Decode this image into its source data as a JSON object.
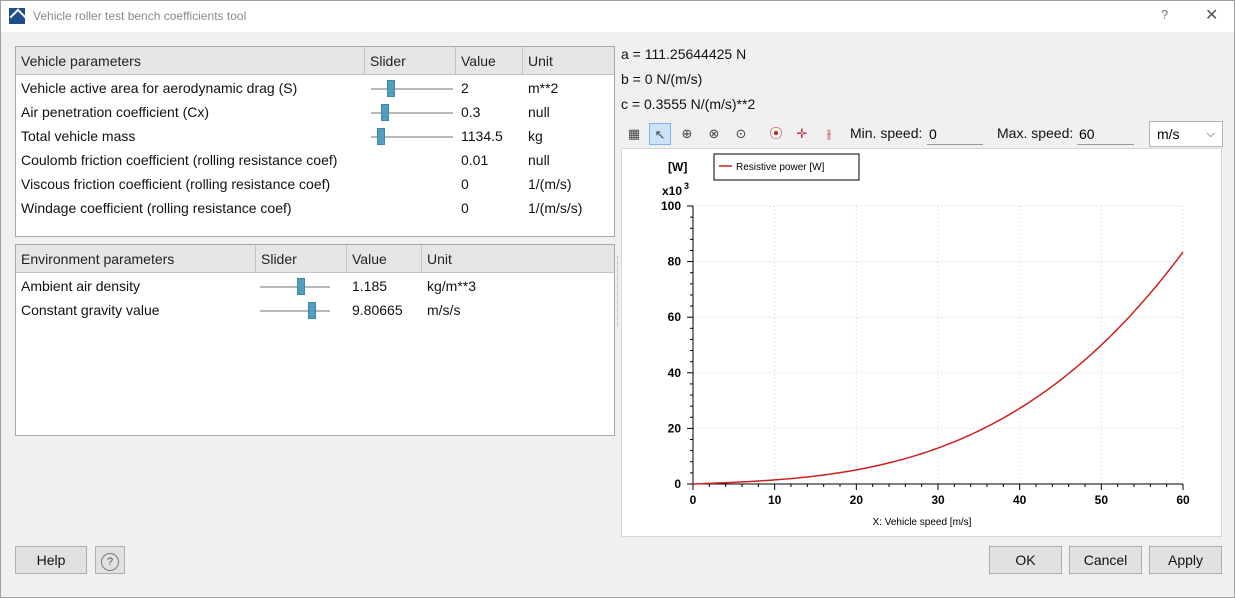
{
  "window": {
    "title": "Vehicle roller test bench coefficients tool",
    "help_glyph": "?",
    "close_glyph": "✕"
  },
  "vehicle_params": {
    "headers": [
      "Vehicle parameters",
      "Slider",
      "Value",
      "Unit"
    ],
    "rows": [
      {
        "name": "Vehicle active area for aerodynamic drag (S)",
        "value": "2",
        "unit": "m**2",
        "slider": 0.22
      },
      {
        "name": "Air penetration coefficient (Cx)",
        "value": "0.3",
        "unit": "null",
        "slider": 0.14
      },
      {
        "name": "Total vehicle mass",
        "value": "1134.5",
        "unit": "kg",
        "slider": 0.08
      },
      {
        "name": "Coulomb friction coefficient (rolling resistance coef)",
        "value": "0.01",
        "unit": "null",
        "slider": null
      },
      {
        "name": "Viscous friction coefficient (rolling resistance coef)",
        "value": "0",
        "unit": "1/(m/s)",
        "slider": null
      },
      {
        "name": "Windage coefficient (rolling resistance coef)",
        "value": "0",
        "unit": "1/(m/s/s)",
        "slider": null
      }
    ]
  },
  "env_params": {
    "headers": [
      "Environment parameters",
      "Slider",
      "Value",
      "Unit"
    ],
    "rows": [
      {
        "name": "Ambient air density",
        "value": "1.185",
        "unit": "kg/m**3",
        "slider": 0.6
      },
      {
        "name": "Constant gravity value",
        "value": "9.80665",
        "unit": "m/s/s",
        "slider": 0.77
      }
    ]
  },
  "results": {
    "a": "a = 111.25644425 N",
    "b": "b = 0 N/(m/s)",
    "c": "c = 0.3555 N/(m/s)**2"
  },
  "toolbar": {
    "min_label": "Min. speed:",
    "min_value": "0",
    "max_label": "Max. speed:",
    "max_value": "60",
    "unit_select": "m/s",
    "icons": [
      "table-icon",
      "pointer-icon",
      "zoom-in-icon",
      "zoom-out-icon",
      "zoom-reset-icon",
      "point-marker-icon",
      "crosshair-marker-icon",
      "dual-marker-icon"
    ]
  },
  "chart_data": {
    "type": "line",
    "ylabel": "[W]",
    "y_multiplier": "x10",
    "y_multiplier_exp": "3",
    "xlabel": "X: Vehicle speed [m/s]",
    "xlim": [
      0,
      60
    ],
    "ylim": [
      0,
      100
    ],
    "xticks": [
      0,
      10,
      20,
      30,
      40,
      50,
      60
    ],
    "yticks": [
      0,
      20,
      40,
      60,
      80,
      100
    ],
    "grid": true,
    "legend_position": "top-left",
    "series": [
      {
        "name": "Resistive power [W]",
        "color": "#d01f1f",
        "formula_coefs": {
          "a": 111.25644425,
          "b": 0,
          "c": 0.3555
        }
      }
    ]
  },
  "buttons": {
    "help": "Help",
    "ok": "OK",
    "cancel": "Cancel",
    "apply": "Apply"
  },
  "colors": {
    "accent": "#4f9fbd",
    "series": "#d01f1f"
  }
}
